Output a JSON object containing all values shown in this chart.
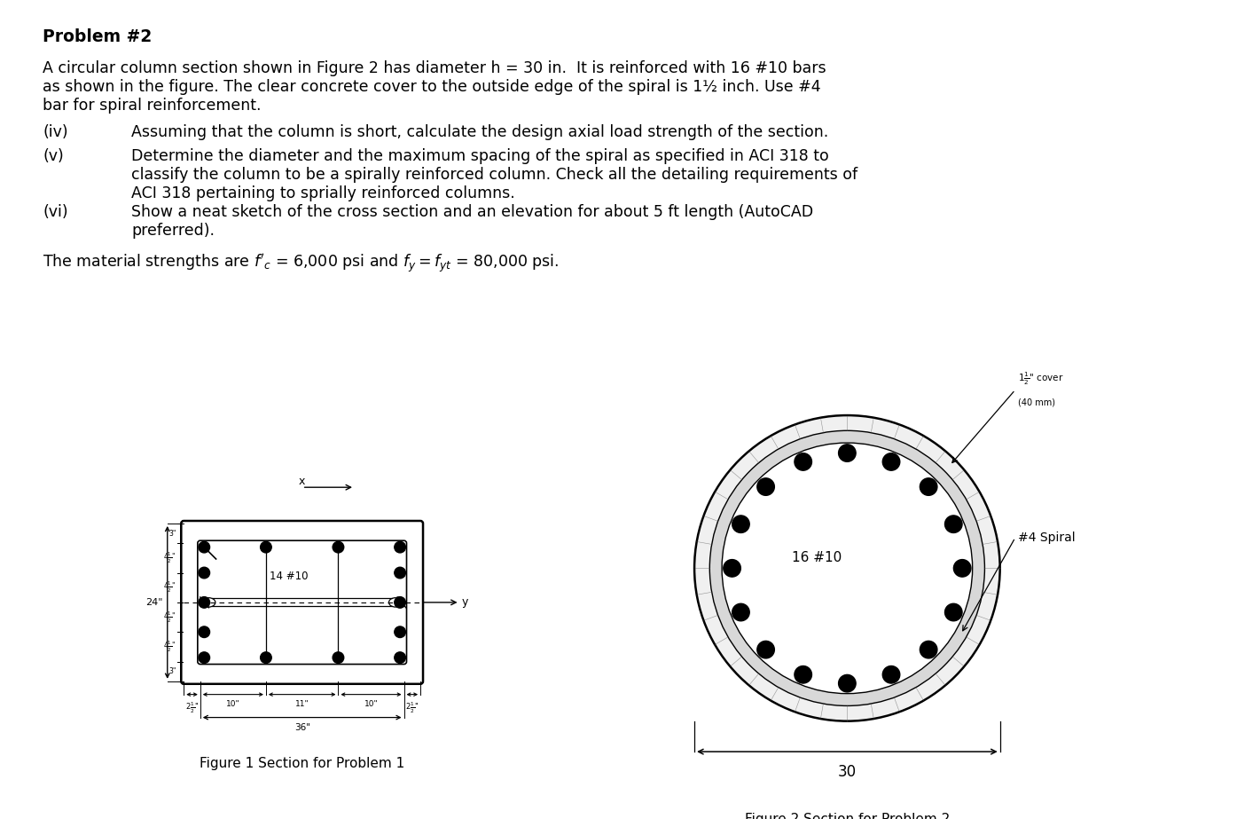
{
  "title": "Problem #2",
  "body_lines": [
    "A circular column section shown in Figure 2 has diameter h = 30 in.  It is reinforced with 16 #10 bars",
    "as shown in the figure. The clear concrete cover to the outside edge of the spiral is 1½ inch. Use #4",
    "bar for spiral reinforcement."
  ],
  "iv_text": "Assuming that the column is short, calculate the design axial load strength of the section.",
  "v_lines": [
    "Determine the diameter and the maximum spacing of the spiral as specified in ACI 318 to",
    "classify the column to be a spirally reinforced column. Check all the detailing requirements of",
    "ACI 318 pertaining to sprially reinforced columns."
  ],
  "vi_lines": [
    "Show a neat sketch of the cross section and an elevation for about 5 ft length (AutoCAD",
    "preferred)."
  ],
  "fig1_caption": "Figure 1 Section for Problem 1",
  "fig2_caption": "Figure 2 Section for Problem 2",
  "bg": "#ffffff",
  "lc": "#000000"
}
